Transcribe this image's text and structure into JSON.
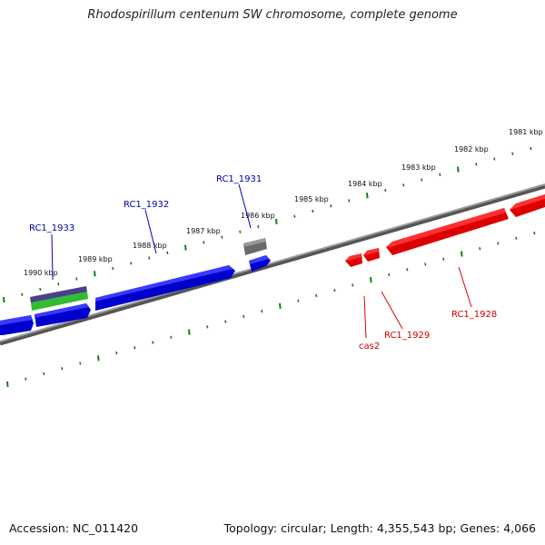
{
  "title": "Rhodospirillum centenum SW chromosome, complete genome",
  "footer": {
    "accession": "Accession: NC_011420",
    "summary": "Topology: circular; Length: 4,355,543 bp; Genes: 4,066"
  },
  "colors": {
    "forward": "#0000ee",
    "reverse": "#ee0000",
    "tick": "#1a7a1a",
    "backbone": "#7a7a7a",
    "other": "#6a6a6a",
    "rna": "#3cb83c",
    "purple": "#4a3f8a"
  },
  "scale_labels": [
    "1981 kbp",
    "1982 kbp",
    "1983 kbp",
    "1984 kbp",
    "1985 kbp",
    "1986 kbp",
    "1987 kbp",
    "1988 kbp",
    "1989 kbp",
    "1990 kbp"
  ],
  "gene_labels": [
    {
      "name": "RC1_1933",
      "strand": "forward"
    },
    {
      "name": "RC1_1932",
      "strand": "forward"
    },
    {
      "name": "RC1_1931",
      "strand": "forward"
    },
    {
      "name": "cas2",
      "strand": "reverse"
    },
    {
      "name": "RC1_1929",
      "strand": "reverse"
    },
    {
      "name": "RC1_1928",
      "strand": "reverse"
    }
  ]
}
